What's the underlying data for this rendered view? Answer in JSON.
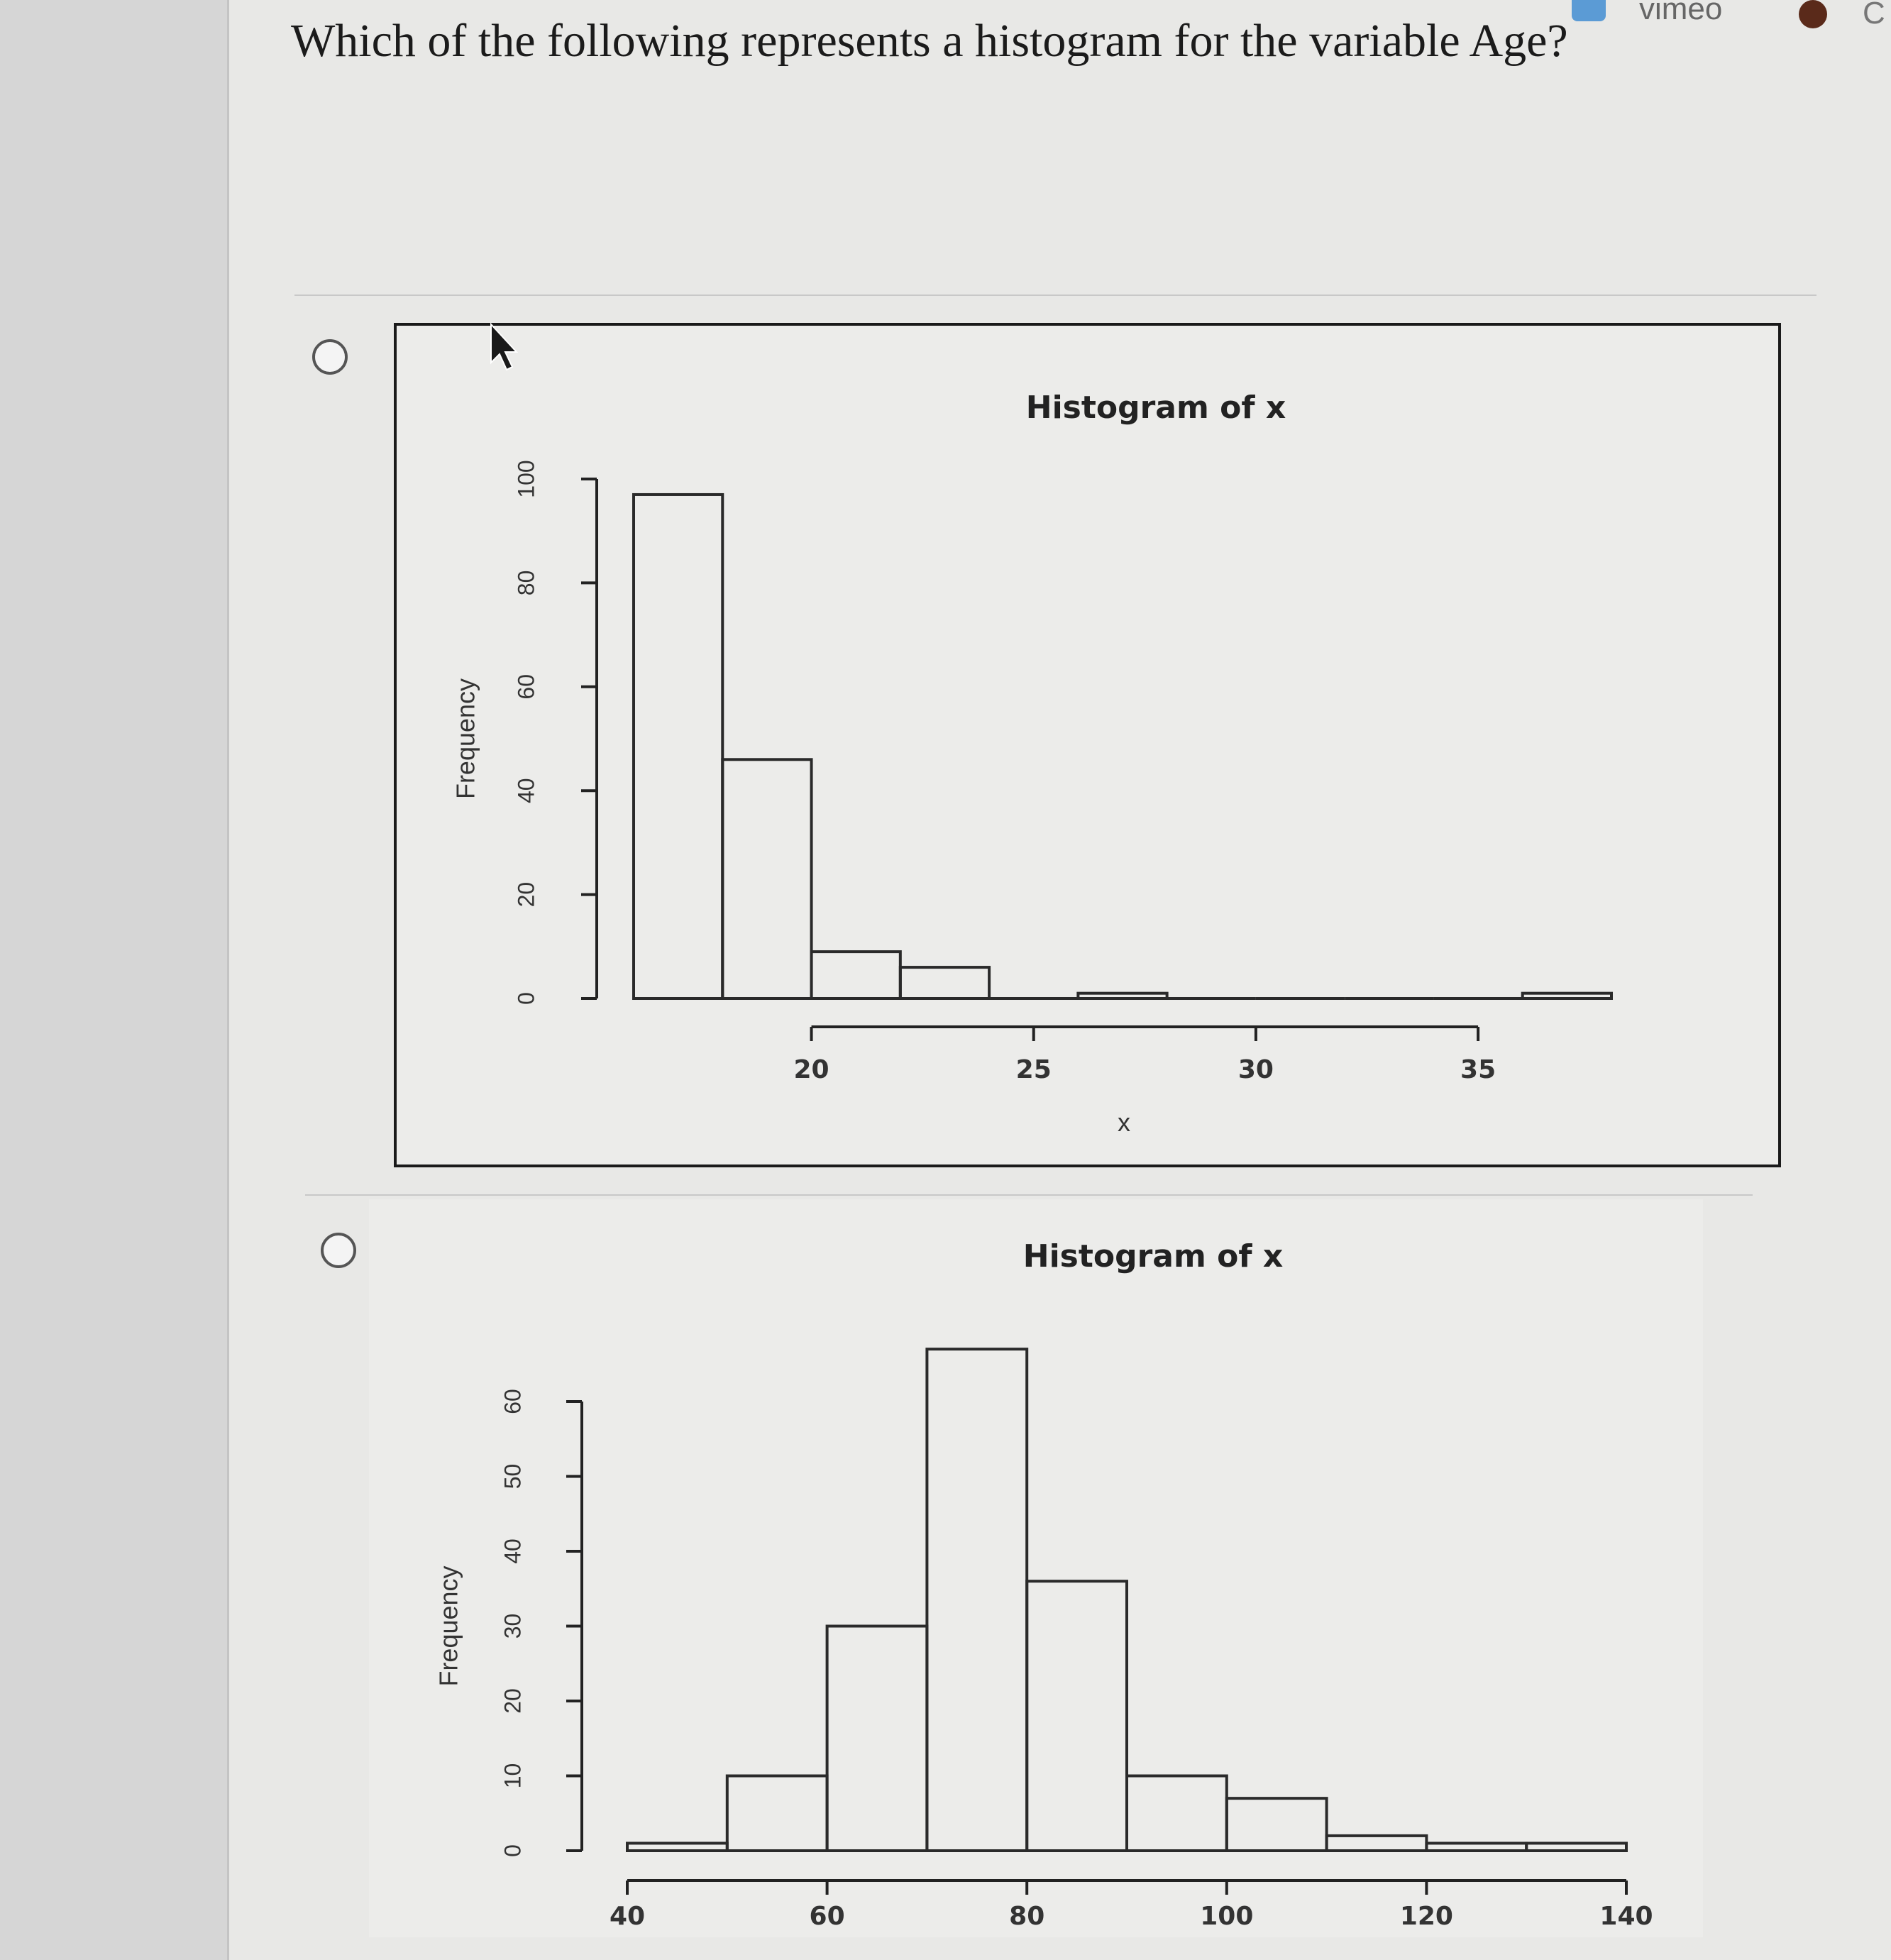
{
  "header": {
    "link_text": "vimeo",
    "extra_text": "C"
  },
  "question": {
    "text": "Which of the following represents a histogram for the variable Age?"
  },
  "chart_data": [
    {
      "type": "bar",
      "title": "Histogram of x",
      "xlabel": "x",
      "ylabel": "Frequency",
      "bins": [
        [
          16,
          18
        ],
        [
          18,
          20
        ],
        [
          20,
          22
        ],
        [
          22,
          24
        ],
        [
          24,
          26
        ],
        [
          26,
          28
        ],
        [
          28,
          30
        ],
        [
          30,
          32
        ],
        [
          32,
          34
        ],
        [
          34,
          36
        ],
        [
          36,
          38
        ]
      ],
      "values": [
        97,
        46,
        9,
        6,
        0,
        1,
        0,
        0,
        0,
        0,
        1
      ],
      "xticks": [
        20,
        25,
        30,
        35
      ],
      "yticks": [
        0,
        20,
        40,
        60,
        80,
        100
      ],
      "xlim": [
        16,
        38
      ],
      "ylim": [
        0,
        100
      ],
      "grid": false
    },
    {
      "type": "bar",
      "title": "Histogram of x",
      "xlabel": "",
      "ylabel": "Frequency",
      "bins": [
        [
          40,
          50
        ],
        [
          50,
          60
        ],
        [
          60,
          70
        ],
        [
          70,
          80
        ],
        [
          80,
          90
        ],
        [
          90,
          100
        ],
        [
          100,
          110
        ],
        [
          110,
          120
        ],
        [
          120,
          130
        ],
        [
          130,
          140
        ]
      ],
      "values": [
        1,
        10,
        30,
        67,
        36,
        10,
        7,
        2,
        1,
        1
      ],
      "xticks": [
        40,
        60,
        80,
        100,
        120,
        140
      ],
      "yticks": [
        0,
        10,
        20,
        30,
        40,
        50,
        60
      ],
      "xlim": [
        40,
        140
      ],
      "ylim": [
        0,
        60
      ],
      "grid": false
    }
  ]
}
